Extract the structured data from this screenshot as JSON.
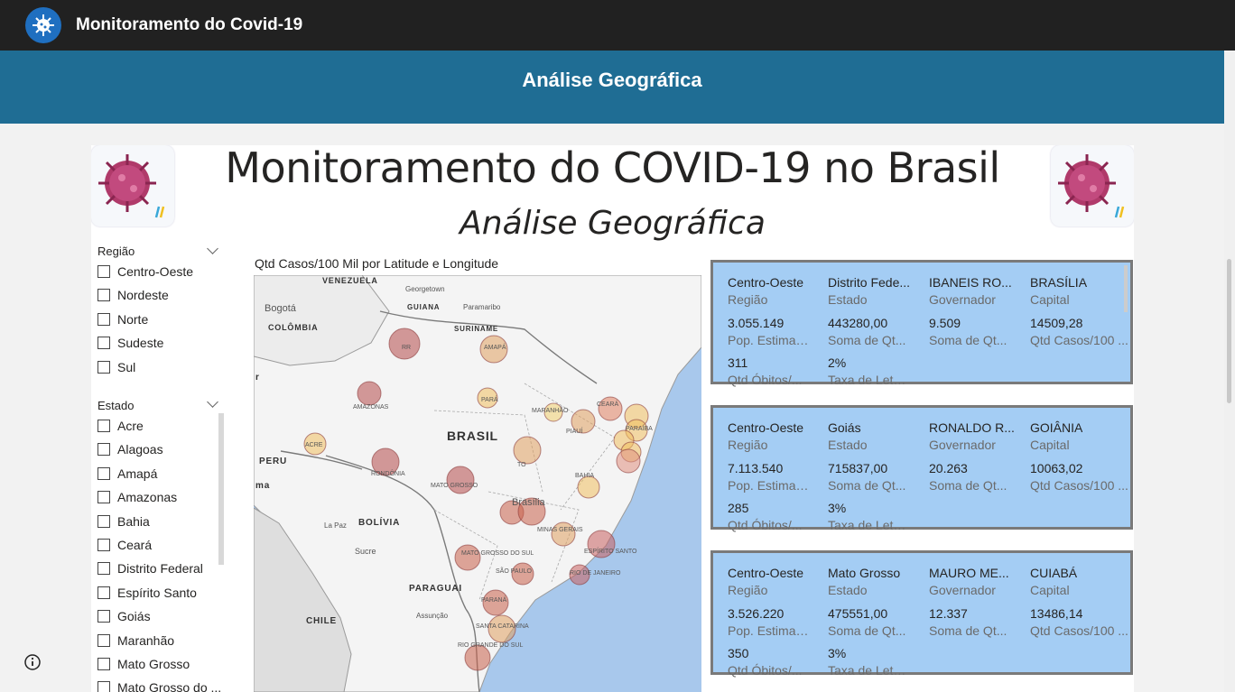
{
  "app": {
    "title": "Monitoramento do Covid-19"
  },
  "banner": {
    "title": "Análise Geográfica"
  },
  "report": {
    "title": "Monitoramento do COVID-19 no Brasil",
    "subtitle": "Análise Geográfica"
  },
  "filters": {
    "regiao": {
      "title": "Região",
      "items": [
        "Centro-Oeste",
        "Nordeste",
        "Norte",
        "Sudeste",
        "Sul"
      ]
    },
    "estado": {
      "title": "Estado",
      "items": [
        "Acre",
        "Alagoas",
        "Amapá",
        "Amazonas",
        "Bahia",
        "Ceará",
        "Distrito Federal",
        "Espírito Santo",
        "Goiás",
        "Maranhão",
        "Mato Grosso",
        "Mato Grosso do ..."
      ]
    }
  },
  "map": {
    "title": "Qtd Casos/100 Mil por Latitude e Longitude",
    "labels": [
      "VENEZUELA",
      "Georgetown",
      "Paramaribo",
      "GUIANA",
      "SURINAME",
      "Bogotá",
      "COLÔMBIA",
      "BRASIL",
      "PERU",
      "BOLÍVIA",
      "La Paz",
      "Sucre",
      "Brasília",
      "PARAGUAI",
      "Assunção",
      "CHILE",
      "AMAPÁ",
      "RR",
      "AMAZONAS",
      "PARÁ",
      "MARANHÃO",
      "CEARÁ",
      "PIAUÍ",
      "PARAÍBA",
      "ACRE",
      "RONDÔNIA",
      "MATO GROSSO",
      "TO",
      "BAHIA",
      "MINAS GERAIS",
      "ESPÍRITO SANTO",
      "MATO GROSSO DO SUL",
      "SÃO PAULO",
      "RIO DE JANEIRO",
      "PARANÁ",
      "SANTA CATARINA",
      "RIO GRANDE DO SUL",
      "r",
      "ma"
    ]
  },
  "cards": [
    {
      "regiao": "Centro-Oeste",
      "regiao_label": "Região",
      "estado": "Distrito Fede...",
      "estado_label": "Estado",
      "governador": "IBANEIS RO...",
      "governador_label": "Governador",
      "capital": "BRASÍLIA",
      "capital_label": "Capital",
      "pop": "3.055.149",
      "pop_label": "Pop. Estimad...",
      "soma1": "443280,00",
      "soma1_label": "Soma de Qt...",
      "soma2": "9.509",
      "soma2_label": "Soma de Qt...",
      "casos100": "14509,28",
      "casos100_label": "Qtd Casos/100 ...",
      "obitos": "311",
      "obitos_label": "Qtd Óbitos/...",
      "letalidade": "2%",
      "letalidade_label": "Taxa de Letalid..."
    },
    {
      "regiao": "Centro-Oeste",
      "regiao_label": "Região",
      "estado": "Goiás",
      "estado_label": "Estado",
      "governador": "RONALDO R...",
      "governador_label": "Governador",
      "capital": "GOIÂNIA",
      "capital_label": "Capital",
      "pop": "7.113.540",
      "pop_label": "Pop. Estimad...",
      "soma1": "715837,00",
      "soma1_label": "Soma de Qt...",
      "soma2": "20.263",
      "soma2_label": "Soma de Qt...",
      "casos100": "10063,02",
      "casos100_label": "Qtd Casos/100 ...",
      "obitos": "285",
      "obitos_label": "Qtd Óbitos/...",
      "letalidade": "3%",
      "letalidade_label": "Taxa de Letalid..."
    },
    {
      "regiao": "Centro-Oeste",
      "regiao_label": "Região",
      "estado": "Mato Grosso",
      "estado_label": "Estado",
      "governador": "MAURO ME...",
      "governador_label": "Governador",
      "capital": "CUIABÁ",
      "capital_label": "Capital",
      "pop": "3.526.220",
      "pop_label": "Pop. Estimad...",
      "soma1": "475551,00",
      "soma1_label": "Soma de Qt...",
      "soma2": "12.337",
      "soma2_label": "Soma de Qt...",
      "casos100": "13486,14",
      "casos100_label": "Qtd Casos/100 ...",
      "obitos": "350",
      "obitos_label": "Qtd Óbitos/...",
      "letalidade": "3%",
      "letalidade_label": "Taxa de Letalid..."
    }
  ],
  "colors": {
    "topbar": "#212121",
    "banner": "#1f6d94",
    "card": "#a4cdf4",
    "bubble_high": "#b44a4a",
    "bubble_low": "#f0c860"
  }
}
